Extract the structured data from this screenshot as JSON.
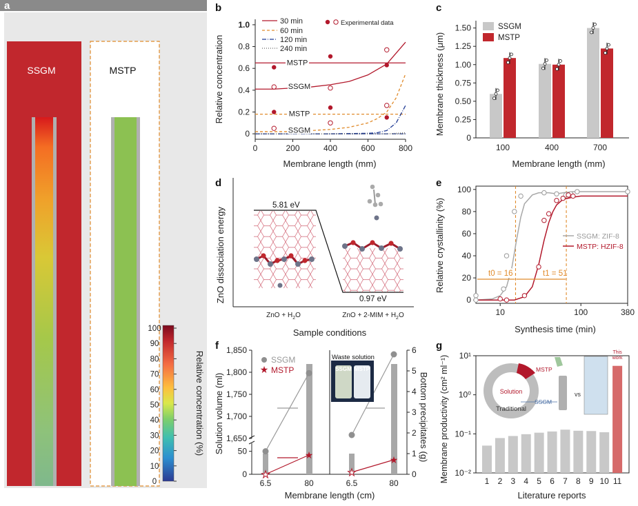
{
  "panels": {
    "a": "a",
    "b": "b",
    "c": "c",
    "d": "d",
    "e": "e",
    "f": "f",
    "g": "g"
  },
  "colors": {
    "ssgm_red": "#c1272d",
    "mstp_red": "#c1272d",
    "gray": "#c8c8c8",
    "dark_gray": "#9a9a9a",
    "orange": "#e08a2a",
    "navy": "#1f3a93",
    "gradient_top": "#b2182b",
    "gradient_bottom": "#2c3a93"
  },
  "panel_a": {
    "left_label": "SSGM",
    "right_label": "MSTP",
    "colorbar_title": "Relative concentration (%)",
    "colorbar_ticks": [
      "100",
      "90",
      "80",
      "70",
      "60",
      "50",
      "40",
      "30",
      "20",
      "10",
      "0"
    ],
    "right_fill_level": 0.33
  },
  "chart_data": [
    {
      "panel": "b",
      "type": "line",
      "xlabel": "Membrane length (mm)",
      "ylabel": "Relative concentration",
      "xlim": [
        0,
        800
      ],
      "ylim": [
        -0.05,
        1.05
      ],
      "xticks": [
        "0",
        "200",
        "400",
        "600",
        "800"
      ],
      "yticks": [
        "0",
        "0.2",
        "0.4",
        "0.6",
        "0.8",
        "1.0"
      ],
      "legend": [
        "30 min",
        "60 min",
        "120 min",
        "240 min"
      ],
      "legend2": "Experimental data",
      "line_labels": [
        "MSTP",
        "SSGM",
        "MSTP",
        "SSGM"
      ],
      "series": [
        {
          "name": "30 min",
          "style": "solid",
          "x": [
            0,
            100,
            200,
            300,
            400,
            500,
            600,
            700,
            800
          ],
          "y_ssgm": [
            0.41,
            0.41,
            0.42,
            0.43,
            0.45,
            0.48,
            0.54,
            0.64,
            0.84
          ],
          "y_mstp": 0.65
        },
        {
          "name": "60 min",
          "style": "dashed",
          "x": [
            0,
            100,
            200,
            300,
            400,
            500,
            600,
            650,
            700,
            750,
            800
          ],
          "y_ssgm": [
            0.02,
            0.02,
            0.02,
            0.03,
            0.04,
            0.06,
            0.1,
            0.14,
            0.2,
            0.33,
            0.55
          ],
          "y_mstp": 0.18
        },
        {
          "name": "120 min",
          "style": "dashdot",
          "x": [
            0,
            200,
            400,
            600,
            650,
            700,
            750,
            800
          ],
          "y_ssgm": [
            0.0,
            0.0,
            0.0,
            0.005,
            0.01,
            0.03,
            0.1,
            0.26
          ],
          "y_mstp": 0.0
        },
        {
          "name": "240 min",
          "style": "dotted",
          "x": [
            0,
            400,
            700,
            800
          ],
          "y_ssgm": [
            0.0,
            0.0,
            0.0,
            0.01
          ],
          "y_mstp": 0.0
        }
      ],
      "experimental_filled": [
        [
          100,
          0.61
        ],
        [
          400,
          0.71
        ],
        [
          700,
          0.63
        ],
        [
          100,
          0.2
        ],
        [
          400,
          0.24
        ],
        [
          700,
          0.15
        ]
      ],
      "experimental_open": [
        [
          100,
          0.43
        ],
        [
          400,
          0.42
        ],
        [
          700,
          0.77
        ],
        [
          100,
          0.05
        ],
        [
          400,
          0.1
        ],
        [
          700,
          0.26
        ]
      ]
    },
    {
      "panel": "c",
      "type": "bar",
      "xlabel": "Membrane length (mm)",
      "ylabel": "Membrane thickness (μm)",
      "categories": [
        "100",
        "400",
        "700"
      ],
      "ylim": [
        0,
        1.6
      ],
      "yticks": [
        "0",
        "0.25",
        "0.50",
        "0.75",
        "1.00",
        "1.25",
        "1.50"
      ],
      "series": [
        {
          "name": "SSGM",
          "values": [
            0.6,
            1.01,
            1.5
          ]
        },
        {
          "name": "MSTP",
          "values": [
            1.09,
            1.0,
            1.22
          ]
        }
      ]
    },
    {
      "panel": "d",
      "type": "bar",
      "xlabel": "Sample conditions",
      "ylabel": "ZnO dissociation energy",
      "categories": [
        "ZnO + H2O",
        "ZnO + 2-MIM + H2O"
      ],
      "values_text": [
        "5.81 eV",
        "0.97 eV"
      ]
    },
    {
      "panel": "e",
      "type": "line",
      "xlabel": "Synthesis time (min)",
      "ylabel": "Relative crystallinity (%)",
      "xscale": "log",
      "xlim": [
        5,
        380
      ],
      "ylim": [
        -3,
        103
      ],
      "xticks": [
        "10",
        "100",
        "380"
      ],
      "yticks": [
        "0",
        "20",
        "40",
        "60",
        "80",
        "100"
      ],
      "series": [
        {
          "name": "SSGM: ZIF-8",
          "x": [
            5,
            8,
            10,
            12,
            14,
            16,
            18,
            20,
            25,
            30,
            40,
            50,
            60,
            80,
            100,
            200,
            380
          ],
          "y": [
            0,
            1,
            4,
            12,
            30,
            55,
            75,
            87,
            95,
            97,
            97,
            96,
            97,
            98,
            98,
            98,
            98
          ]
        },
        {
          "name": "MSTP: HZIF-8",
          "x": [
            5,
            10,
            15,
            20,
            25,
            30,
            35,
            40,
            45,
            50,
            60,
            80,
            100,
            200,
            380
          ],
          "y": [
            0,
            0,
            0,
            3,
            12,
            32,
            54,
            70,
            80,
            86,
            91,
            93,
            94,
            94,
            94
          ]
        }
      ],
      "markers_ssgm": [
        [
          5,
          0
        ],
        [
          5,
          4
        ],
        [
          11,
          10
        ],
        [
          12,
          40
        ],
        [
          15,
          80
        ],
        [
          18,
          94
        ],
        [
          35,
          97
        ],
        [
          50,
          96
        ],
        [
          65,
          95
        ],
        [
          75,
          96
        ],
        [
          90,
          98
        ],
        [
          380,
          98
        ]
      ],
      "markers_mstp": [
        [
          10,
          1
        ],
        [
          12,
          0
        ],
        [
          20,
          4
        ],
        [
          30,
          30
        ],
        [
          35,
          72
        ],
        [
          40,
          78
        ],
        [
          50,
          90
        ],
        [
          60,
          92
        ],
        [
          70,
          95
        ],
        [
          80,
          94
        ]
      ],
      "annot_t0": "t0 = 16",
      "annot_t1": "t1 = 51",
      "vlines": [
        15.5,
        66
      ]
    },
    {
      "panel": "f",
      "type": "scatter",
      "xlabel": "Membrane length (cm)",
      "ylabel_left": "Solution volume (ml)",
      "ylabel_right": "Bottom precipitates (g)",
      "categories": [
        "6.5",
        "80"
      ],
      "yticks_upper": [
        "1,650",
        "1,700",
        "1,750",
        "1,800",
        "1,850"
      ],
      "yticks_lower": [
        "0",
        "50"
      ],
      "yticks_right": [
        "0",
        "1",
        "2",
        "3",
        "4",
        "5",
        "6"
      ],
      "legend": [
        "SSGM",
        "MSTP"
      ],
      "inset_title": "Waste solution",
      "inset_labels": [
        "SSGM",
        "MSTP"
      ],
      "volume_ssgm": [
        50,
        1798
      ],
      "volume_mstp": [
        0,
        42
      ],
      "precip_ssgm": [
        1.9,
        5.8
      ],
      "precip_mstp": [
        0.1,
        0.7
      ]
    },
    {
      "panel": "g",
      "type": "bar",
      "xlabel": "Literature reports",
      "ylabel": "Membrane productivity (cm² ml⁻¹)",
      "yscale": "log",
      "ylim": [
        0.01,
        10
      ],
      "yticks": [
        "10⁻²",
        "10⁻¹",
        "10⁰",
        "10¹"
      ],
      "categories": [
        "1",
        "2",
        "3",
        "4",
        "5",
        "6",
        "7",
        "8",
        "9",
        "10",
        "11"
      ],
      "values": [
        0.05,
        0.078,
        0.088,
        0.098,
        0.107,
        0.115,
        0.128,
        0.12,
        0.118,
        0.11,
        5.5
      ],
      "annotation": "This work",
      "inset_labels": {
        "solution": "Solution",
        "traditional": "Traditional",
        "mstp": "MSTP",
        "ssgm": "SSGM",
        "vs": "vs",
        "inner": "MSTP"
      }
    }
  ]
}
